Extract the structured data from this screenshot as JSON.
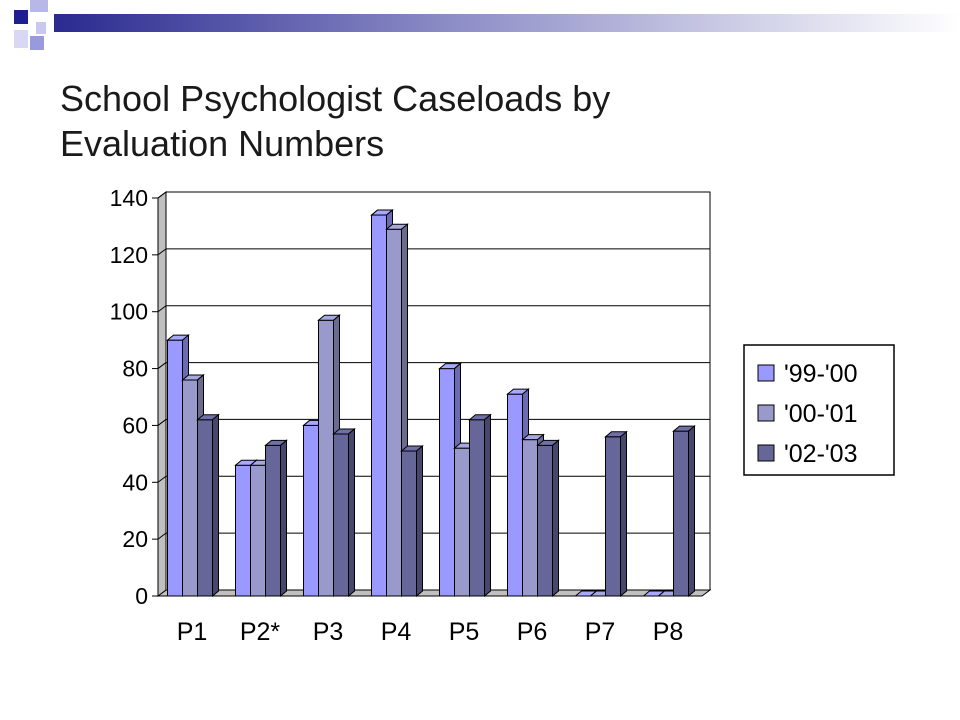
{
  "slide": {
    "title_line1": "School Psychologist Caseloads by",
    "title_line2": "Evaluation Numbers",
    "colors": {
      "accent_navy": "#1f1f8f",
      "accent_periwinkle": "#9999dd",
      "accent_gradient_end": "#ffffff"
    }
  },
  "chart_data": {
    "type": "bar",
    "title": "",
    "xlabel": "",
    "ylabel": "",
    "categories": [
      "P1",
      "P2*",
      "P3",
      "P4",
      "P5",
      "P6",
      "P7",
      "P8"
    ],
    "series": [
      {
        "name": "'99-'00",
        "color": "#9999ff",
        "values": [
          90,
          46,
          60,
          134,
          80,
          71,
          0,
          0
        ]
      },
      {
        "name": "'00-'01",
        "color": "#9999cc",
        "values": [
          76,
          46,
          97,
          129,
          52,
          55,
          0,
          0
        ]
      },
      {
        "name": "'02-'03",
        "color": "#666699",
        "values": [
          62,
          53,
          57,
          51,
          62,
          53,
          56,
          58
        ]
      }
    ],
    "ylim": [
      0,
      140
    ],
    "yticks": [
      0,
      20,
      40,
      60,
      80,
      100,
      120,
      140
    ],
    "grid": true,
    "legend_position": "right",
    "style": "3d-clustered-column"
  }
}
